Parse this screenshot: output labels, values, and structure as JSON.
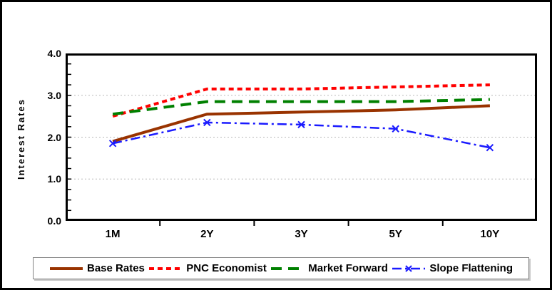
{
  "chart_data": {
    "type": "line",
    "title": "",
    "xlabel": "",
    "ylabel": "Interest Rates",
    "categories": [
      "1M",
      "2Y",
      "3Y",
      "5Y",
      "10Y"
    ],
    "ylim": [
      0.0,
      4.0
    ],
    "y_tick_labels": [
      "4.0",
      "3.0",
      "2.0",
      "1.0",
      "0.0"
    ],
    "y_grid_values": [
      3.0,
      2.0,
      1.0
    ],
    "y_minor_tick_step": 0.25,
    "grid": "horizontal-dotted",
    "grid_color": "#b8b8b8",
    "axis_color": "#000000",
    "legend_position": "bottom",
    "series": [
      {
        "name": "Base Rates",
        "color": "#993300",
        "style": "solid",
        "line_width": 4,
        "marker": "none",
        "values": [
          1.9,
          2.55,
          2.6,
          2.65,
          2.75
        ]
      },
      {
        "name": "PNC Economist",
        "color": "#ff0000",
        "style": "dashed",
        "line_width": 4,
        "marker": "none",
        "values": [
          2.5,
          3.15,
          3.15,
          3.2,
          3.25
        ]
      },
      {
        "name": "Market Forward",
        "color": "#008000",
        "style": "long-dash",
        "line_width": 4,
        "marker": "none",
        "values": [
          2.55,
          2.85,
          2.85,
          2.85,
          2.9
        ]
      },
      {
        "name": "Slope Flattening",
        "color": "#1a1aff",
        "style": "dash-dot",
        "line_width": 2.5,
        "marker": "x",
        "values": [
          1.85,
          2.35,
          2.3,
          2.2,
          1.75
        ]
      }
    ]
  }
}
